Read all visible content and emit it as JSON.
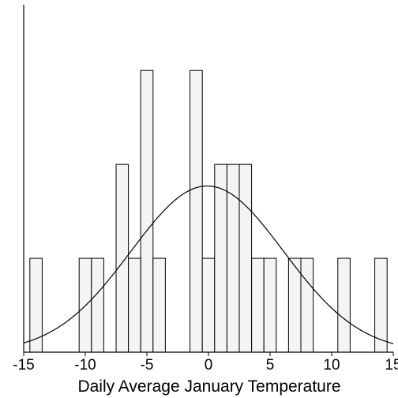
{
  "chart_data": {
    "type": "bar",
    "subtype": "histogram_with_density_curve",
    "title": "",
    "xlabel": "Daily Average January Temperature",
    "ylabel": "",
    "xlim": [
      -15,
      15
    ],
    "ylim": [
      0,
      3.7
    ],
    "x_ticks": [
      -15,
      -10,
      -5,
      0,
      5,
      10,
      15
    ],
    "x_tick_labels": [
      "-15",
      "-10",
      "-5",
      "0",
      "5",
      "10",
      "15"
    ],
    "bin_width": 1,
    "bins": [
      {
        "x0": -14.5,
        "x1": -13.5,
        "count": 1
      },
      {
        "x0": -10.5,
        "x1": -9.5,
        "count": 1
      },
      {
        "x0": -9.5,
        "x1": -8.5,
        "count": 1
      },
      {
        "x0": -7.5,
        "x1": -6.5,
        "count": 2
      },
      {
        "x0": -6.5,
        "x1": -5.5,
        "count": 1
      },
      {
        "x0": -5.5,
        "x1": -4.5,
        "count": 3
      },
      {
        "x0": -4.5,
        "x1": -3.5,
        "count": 1
      },
      {
        "x0": -1.5,
        "x1": -0.5,
        "count": 3
      },
      {
        "x0": -0.5,
        "x1": 0.5,
        "count": 1
      },
      {
        "x0": 0.5,
        "x1": 1.5,
        "count": 2
      },
      {
        "x0": 1.5,
        "x1": 2.5,
        "count": 2
      },
      {
        "x0": 2.5,
        "x1": 3.5,
        "count": 2
      },
      {
        "x0": 3.5,
        "x1": 4.5,
        "count": 1
      },
      {
        "x0": 4.5,
        "x1": 5.5,
        "count": 1
      },
      {
        "x0": 6.5,
        "x1": 7.5,
        "count": 1
      },
      {
        "x0": 7.5,
        "x1": 8.5,
        "count": 1
      },
      {
        "x0": 10.5,
        "x1": 11.5,
        "count": 1
      },
      {
        "x0": 13.5,
        "x1": 14.5,
        "count": 1
      }
    ],
    "density_curve": {
      "type": "normal",
      "mean": -0.1,
      "sd": 6.2,
      "peak": 1.77
    },
    "grid": false,
    "legend": "none",
    "colors": {
      "bar_fill": "#f4f4f4",
      "bar_stroke": "#000000",
      "curve": "#000000",
      "axis": "#000000"
    }
  }
}
